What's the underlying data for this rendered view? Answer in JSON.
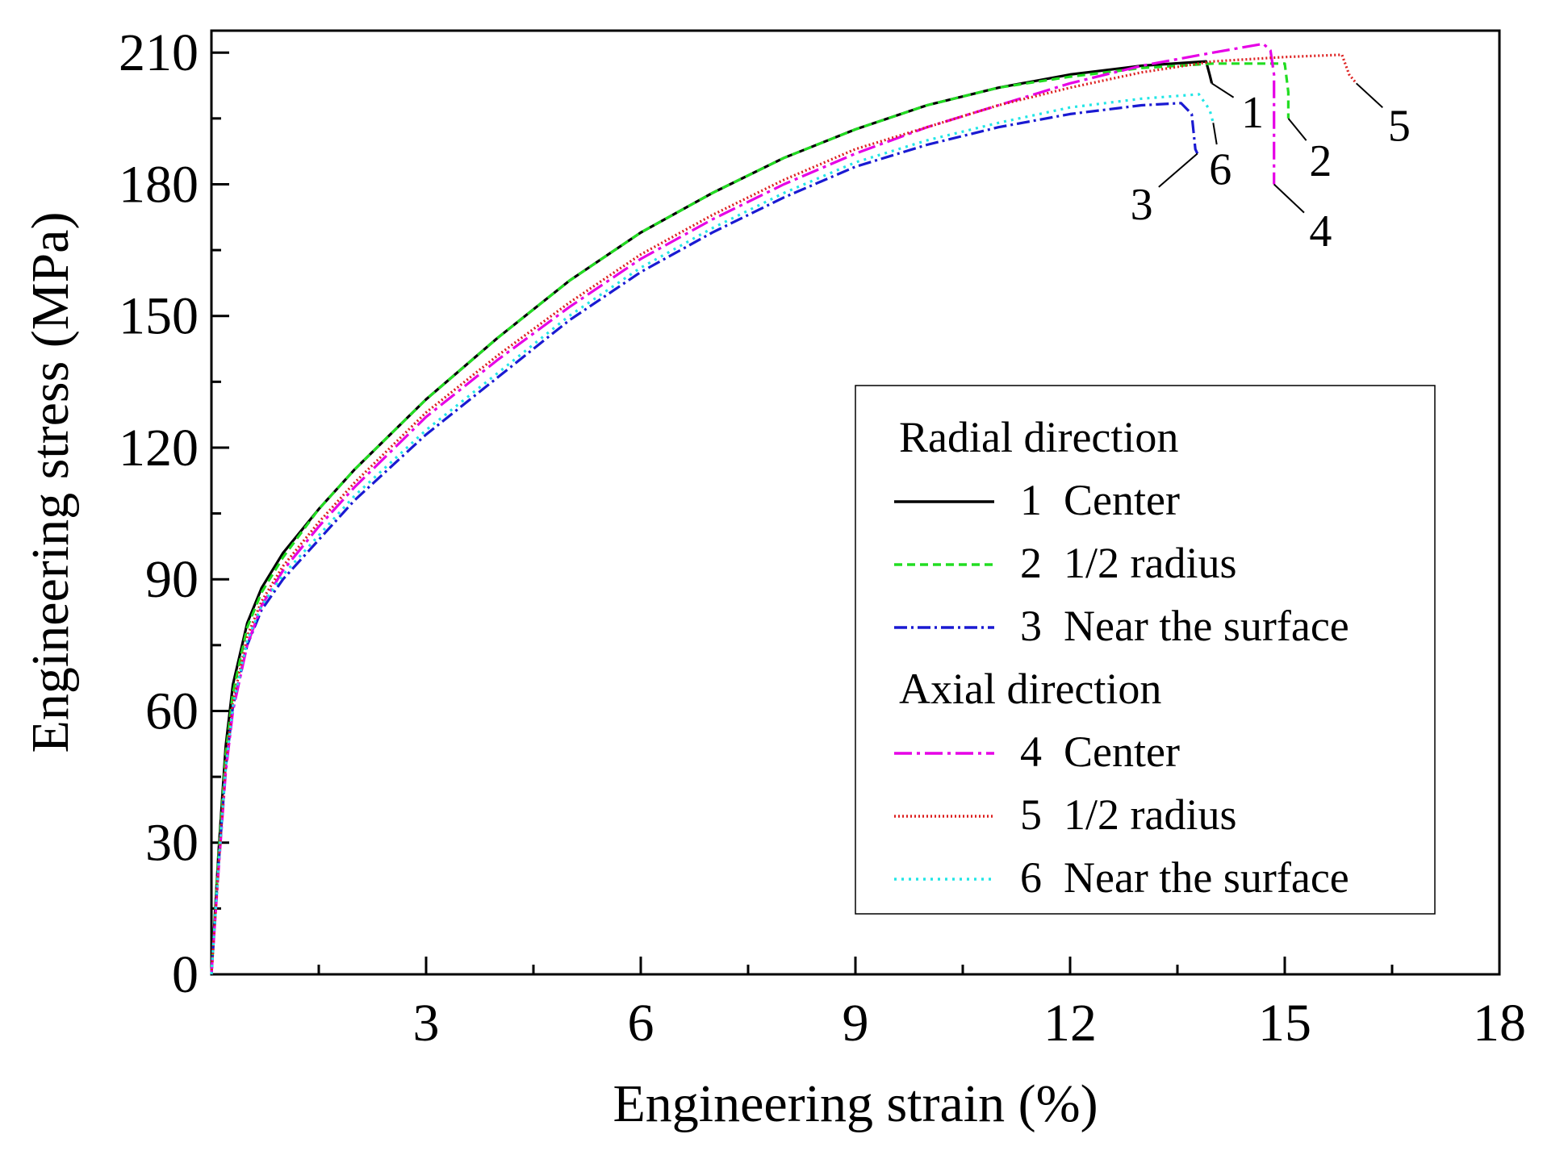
{
  "chart_data": {
    "type": "line",
    "title": "",
    "xlabel": "Engineering strain (%)",
    "ylabel": "Engineering stress (MPa)",
    "xlim": [
      0,
      18
    ],
    "ylim": [
      0,
      215
    ],
    "xticks": [
      3,
      6,
      9,
      12,
      15,
      18
    ],
    "yticks": [
      0,
      30,
      60,
      90,
      120,
      150,
      180,
      210
    ],
    "x_minor_step": 1.5,
    "y_minor_step": 15,
    "grid": false,
    "legend": {
      "position": "bottom-right",
      "groups": [
        {
          "title": "Radial direction",
          "entries": [
            {
              "series": 0,
              "label": "1  Center"
            },
            {
              "series": 1,
              "label": "2  1/2 radius"
            },
            {
              "series": 2,
              "label": "3  Near the surface"
            }
          ]
        },
        {
          "title": "Axial direction",
          "entries": [
            {
              "series": 3,
              "label": "4  Center"
            },
            {
              "series": 4,
              "label": "5  1/2 radius"
            },
            {
              "series": 5,
              "label": "6  Near the surface"
            }
          ]
        }
      ]
    },
    "series": [
      {
        "name": "1 Center",
        "group": "Radial direction",
        "color": "#000000",
        "dash": "",
        "marker_label": "1",
        "label_anchor": [
          14.55,
          197
        ],
        "points": [
          [
            0,
            0
          ],
          [
            0.1,
            28
          ],
          [
            0.2,
            52
          ],
          [
            0.3,
            66
          ],
          [
            0.5,
            80
          ],
          [
            0.7,
            88
          ],
          [
            1,
            96
          ],
          [
            1.5,
            106
          ],
          [
            2,
            115
          ],
          [
            3,
            131
          ],
          [
            4,
            145
          ],
          [
            5,
            158
          ],
          [
            6,
            169
          ],
          [
            7,
            178
          ],
          [
            8,
            186
          ],
          [
            9,
            192.5
          ],
          [
            10,
            198
          ],
          [
            11,
            202
          ],
          [
            12,
            205
          ],
          [
            13,
            207
          ],
          [
            13.9,
            208
          ],
          [
            13.95,
            205
          ],
          [
            13.98,
            203
          ]
        ]
      },
      {
        "name": "2 1/2 radius",
        "group": "Radial direction",
        "color": "#22dd22",
        "dash": "10 6",
        "marker_label": "2",
        "label_anchor": [
          15.5,
          186
        ],
        "points": [
          [
            0,
            0
          ],
          [
            0.1,
            27
          ],
          [
            0.2,
            50
          ],
          [
            0.3,
            64
          ],
          [
            0.5,
            79
          ],
          [
            0.7,
            87
          ],
          [
            1,
            95
          ],
          [
            1.5,
            106
          ],
          [
            2,
            115
          ],
          [
            3,
            131
          ],
          [
            4,
            145
          ],
          [
            5,
            158
          ],
          [
            6,
            169
          ],
          [
            7,
            178
          ],
          [
            8,
            186
          ],
          [
            9,
            192.5
          ],
          [
            10,
            198
          ],
          [
            11,
            202
          ],
          [
            12,
            204.5
          ],
          [
            13,
            206.5
          ],
          [
            14,
            207.5
          ],
          [
            15,
            207.5
          ],
          [
            15.05,
            201
          ],
          [
            15.05,
            195
          ]
        ]
      },
      {
        "name": "3 Near the surface",
        "group": "Radial direction",
        "color": "#1a1ad2",
        "dash": "16 5 3 5",
        "marker_label": "3",
        "label_anchor": [
          13.0,
          176
        ],
        "points": [
          [
            0,
            0
          ],
          [
            0.1,
            25
          ],
          [
            0.2,
            47
          ],
          [
            0.3,
            61
          ],
          [
            0.5,
            75
          ],
          [
            0.7,
            83
          ],
          [
            1,
            90
          ],
          [
            1.5,
            99
          ],
          [
            2,
            108
          ],
          [
            3,
            123
          ],
          [
            4,
            136
          ],
          [
            5,
            149
          ],
          [
            6,
            160
          ],
          [
            7,
            169
          ],
          [
            8,
            177
          ],
          [
            9,
            184
          ],
          [
            10,
            189
          ],
          [
            11,
            193
          ],
          [
            12,
            196
          ],
          [
            13,
            198
          ],
          [
            13.55,
            198.5
          ],
          [
            13.7,
            196
          ],
          [
            13.75,
            188
          ],
          [
            13.78,
            187
          ]
        ]
      },
      {
        "name": "4 Center",
        "group": "Axial direction",
        "color": "#e600e6",
        "dash": "22 6 4 6",
        "marker_label": "4",
        "label_anchor": [
          15.5,
          170
        ],
        "points": [
          [
            0,
            0
          ],
          [
            0.1,
            24
          ],
          [
            0.2,
            46
          ],
          [
            0.3,
            60
          ],
          [
            0.5,
            75
          ],
          [
            0.7,
            84
          ],
          [
            1,
            92
          ],
          [
            1.5,
            102
          ],
          [
            2,
            111
          ],
          [
            3,
            127
          ],
          [
            4,
            140
          ],
          [
            5,
            152
          ],
          [
            6,
            163
          ],
          [
            7,
            172
          ],
          [
            8,
            180
          ],
          [
            9,
            187
          ],
          [
            10,
            193
          ],
          [
            11,
            198
          ],
          [
            12,
            203
          ],
          [
            13,
            207
          ],
          [
            14,
            210
          ],
          [
            14.7,
            212
          ],
          [
            14.8,
            210.5
          ],
          [
            14.85,
            205
          ],
          [
            14.85,
            180
          ]
        ]
      },
      {
        "name": "5 1/2 radius",
        "group": "Axial direction",
        "color": "#dd2020",
        "dash": "2 3",
        "marker_label": "5",
        "label_anchor": [
          16.6,
          194
        ],
        "points": [
          [
            0,
            0
          ],
          [
            0.1,
            25
          ],
          [
            0.2,
            48
          ],
          [
            0.3,
            62
          ],
          [
            0.5,
            77
          ],
          [
            0.7,
            85
          ],
          [
            1,
            93
          ],
          [
            1.5,
            103
          ],
          [
            2,
            112
          ],
          [
            3,
            128
          ],
          [
            4,
            141
          ],
          [
            5,
            153
          ],
          [
            6,
            164
          ],
          [
            7,
            173
          ],
          [
            8,
            181
          ],
          [
            9,
            188
          ],
          [
            10,
            193
          ],
          [
            11,
            198
          ],
          [
            12,
            202
          ],
          [
            13,
            205.5
          ],
          [
            14,
            208
          ],
          [
            15,
            209
          ],
          [
            15.8,
            209.5
          ],
          [
            15.9,
            205
          ],
          [
            16.0,
            203
          ]
        ]
      },
      {
        "name": "6 Near the surface",
        "group": "Axial direction",
        "color": "#22e6e6",
        "dash": "3 6",
        "marker_label": "6",
        "label_anchor": [
          14.1,
          184
        ],
        "points": [
          [
            0,
            0
          ],
          [
            0.1,
            25
          ],
          [
            0.2,
            47
          ],
          [
            0.3,
            61
          ],
          [
            0.5,
            76
          ],
          [
            0.7,
            84
          ],
          [
            1,
            91
          ],
          [
            1.5,
            100
          ],
          [
            2,
            109
          ],
          [
            3,
            124
          ],
          [
            4,
            137
          ],
          [
            5,
            150
          ],
          [
            6,
            161
          ],
          [
            7,
            170
          ],
          [
            8,
            178
          ],
          [
            9,
            185
          ],
          [
            10,
            190
          ],
          [
            11,
            194
          ],
          [
            12,
            197.5
          ],
          [
            13,
            199.5
          ],
          [
            13.8,
            200.5
          ],
          [
            13.95,
            197
          ],
          [
            14,
            194
          ]
        ]
      }
    ]
  }
}
